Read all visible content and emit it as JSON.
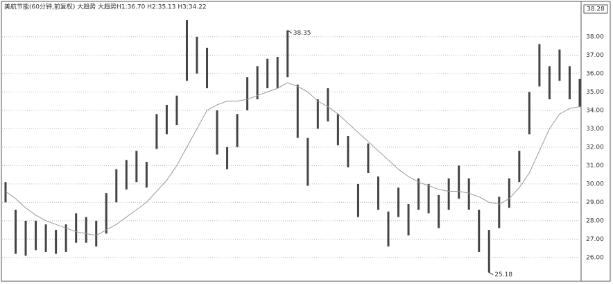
{
  "chart_data": {
    "type": "range-bar",
    "title": "美航节能(60分钟,前复权) 大趋势 大趋势H1:36.70 H2:35.13 H3:34.22",
    "price_label": "38.28",
    "series": [
      {
        "name": "price",
        "color": "#444444",
        "high": [
          30.1,
          28.6,
          28.0,
          28.0,
          27.8,
          27.5,
          27.8,
          28.4,
          28.2,
          28.0,
          29.5,
          30.8,
          31.3,
          31.8,
          31.2,
          33.8,
          34.3,
          34.8,
          38.9,
          38.0,
          37.4,
          34.0,
          32.0,
          33.8,
          35.8,
          36.4,
          36.8,
          36.9,
          38.35,
          35.4,
          32.5,
          34.6,
          35.2,
          33.8,
          32.6,
          30.0,
          32.2,
          30.4,
          28.5,
          29.8,
          28.9,
          30.3,
          30.0,
          29.4,
          30.3,
          31.0,
          30.3,
          28.6,
          27.5,
          29.3,
          30.3,
          31.8,
          35.0,
          37.6,
          36.4,
          37.3,
          36.4,
          35.7
        ],
        "low": [
          29.0,
          26.2,
          26.1,
          26.4,
          26.3,
          26.2,
          26.3,
          26.8,
          26.8,
          26.6,
          27.3,
          29.0,
          29.7,
          30.1,
          29.8,
          31.9,
          32.7,
          33.2,
          35.6,
          36.0,
          35.2,
          31.6,
          30.8,
          32.0,
          34.0,
          34.6,
          35.2,
          35.2,
          35.8,
          32.5,
          29.9,
          33.0,
          33.4,
          32.1,
          30.9,
          28.2,
          30.6,
          28.6,
          26.6,
          28.2,
          27.2,
          28.6,
          28.4,
          27.6,
          28.6,
          29.2,
          28.6,
          26.3,
          25.18,
          27.6,
          28.7,
          30.1,
          32.7,
          35.3,
          34.6,
          35.6,
          34.6,
          34.2
        ]
      },
      {
        "name": "MA",
        "color": "#999999",
        "values": [
          29.6,
          29.2,
          28.7,
          28.3,
          28.0,
          27.8,
          27.6,
          27.4,
          27.3,
          27.2,
          27.5,
          27.8,
          28.2,
          28.6,
          29.0,
          29.6,
          30.2,
          31.0,
          32.0,
          33.0,
          34.0,
          34.3,
          34.5,
          34.5,
          34.6,
          34.8,
          35.0,
          35.2,
          35.5,
          35.3,
          35.0,
          34.5,
          34.2,
          33.8,
          33.3,
          32.8,
          32.3,
          31.8,
          31.3,
          30.8,
          30.4,
          30.1,
          29.9,
          29.7,
          29.6,
          29.6,
          29.5,
          29.3,
          29.0,
          28.9,
          29.2,
          29.8,
          30.6,
          31.8,
          33.0,
          33.8,
          34.1,
          34.2
        ]
      }
    ],
    "annotations": [
      {
        "text": "38.35",
        "index": 28,
        "value": 38.35
      },
      {
        "text": "25.18",
        "index": 48,
        "value": 25.18
      }
    ],
    "ylim": [
      24.9,
      39.62
    ],
    "yticks": [
      {
        "value": 26,
        "label": "26.00"
      },
      {
        "value": 27,
        "label": "27.00"
      },
      {
        "value": 28,
        "label": "28.00"
      },
      {
        "value": 29,
        "label": "29.00"
      },
      {
        "value": 30,
        "label": "30.00"
      },
      {
        "value": 31,
        "label": "31.00"
      },
      {
        "value": 32,
        "label": "32.00"
      },
      {
        "value": 33,
        "label": "33.00"
      },
      {
        "value": 34,
        "label": "34.00"
      },
      {
        "value": 35,
        "label": "35.00"
      },
      {
        "value": 36,
        "label": "36.00"
      },
      {
        "value": 37,
        "label": "37.00"
      },
      {
        "value": 38,
        "label": "38.00"
      }
    ],
    "grid": true
  }
}
